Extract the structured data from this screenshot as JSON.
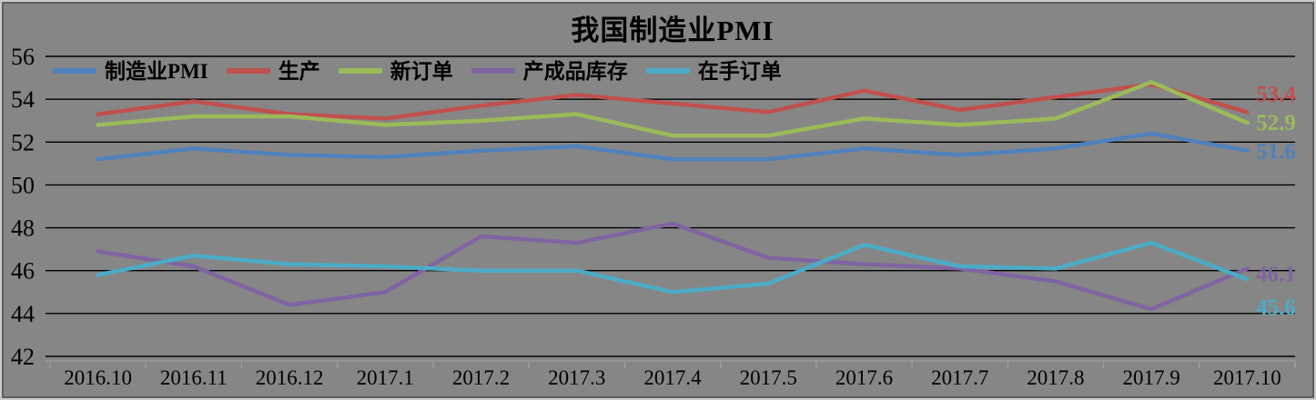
{
  "chart_data": {
    "type": "line",
    "title": "我国制造业PMI",
    "categories": [
      "2016.10",
      "2016.11",
      "2016.12",
      "2017.1",
      "2017.2",
      "2017.3",
      "2017.4",
      "2017.5",
      "2017.6",
      "2017.7",
      "2017.8",
      "2017.9",
      "2017.10"
    ],
    "series": [
      {
        "key": "pmi",
        "name": "制造业PMI",
        "color": "#4F81BD",
        "values": [
          51.2,
          51.7,
          51.4,
          51.3,
          51.6,
          51.8,
          51.2,
          51.2,
          51.7,
          51.4,
          51.7,
          52.4,
          51.6
        ],
        "end_label": "51.6"
      },
      {
        "key": "production",
        "name": "生产",
        "color": "#C0504D",
        "values": [
          53.3,
          53.9,
          53.3,
          53.1,
          53.7,
          54.2,
          53.8,
          53.4,
          54.4,
          53.5,
          54.1,
          54.7,
          53.4
        ],
        "end_label": "53.4"
      },
      {
        "key": "new-orders",
        "name": "新订单",
        "color": "#9BBB59",
        "values": [
          52.8,
          53.2,
          53.2,
          52.8,
          53.0,
          53.3,
          52.3,
          52.3,
          53.1,
          52.8,
          53.1,
          54.8,
          52.9
        ],
        "end_label": "52.9"
      },
      {
        "key": "finished-goods-inventory",
        "name": "产成品库存",
        "color": "#8064A2",
        "values": [
          46.9,
          46.2,
          44.4,
          45.0,
          47.6,
          47.3,
          48.2,
          46.6,
          46.3,
          46.1,
          45.5,
          44.2,
          46.1
        ],
        "end_label": "46.1"
      },
      {
        "key": "backlog-orders",
        "name": "在手订单",
        "color": "#4BACC6",
        "values": [
          45.8,
          46.7,
          46.3,
          46.2,
          46.0,
          46.0,
          45.0,
          45.4,
          47.2,
          46.2,
          46.1,
          47.3,
          45.6
        ],
        "end_label": "45.6"
      }
    ],
    "ylim": [
      42,
      56
    ],
    "ytick_step": 2,
    "yticks": [
      56,
      54,
      52,
      50,
      48,
      46,
      44,
      42
    ],
    "grid": true,
    "legend_position": "top-left-inside",
    "xlabel": "",
    "ylabel": "",
    "colors": {
      "background": "#868686",
      "gridline": "#000000",
      "category_axis": "#9E9E9E",
      "text": "#000000"
    }
  }
}
